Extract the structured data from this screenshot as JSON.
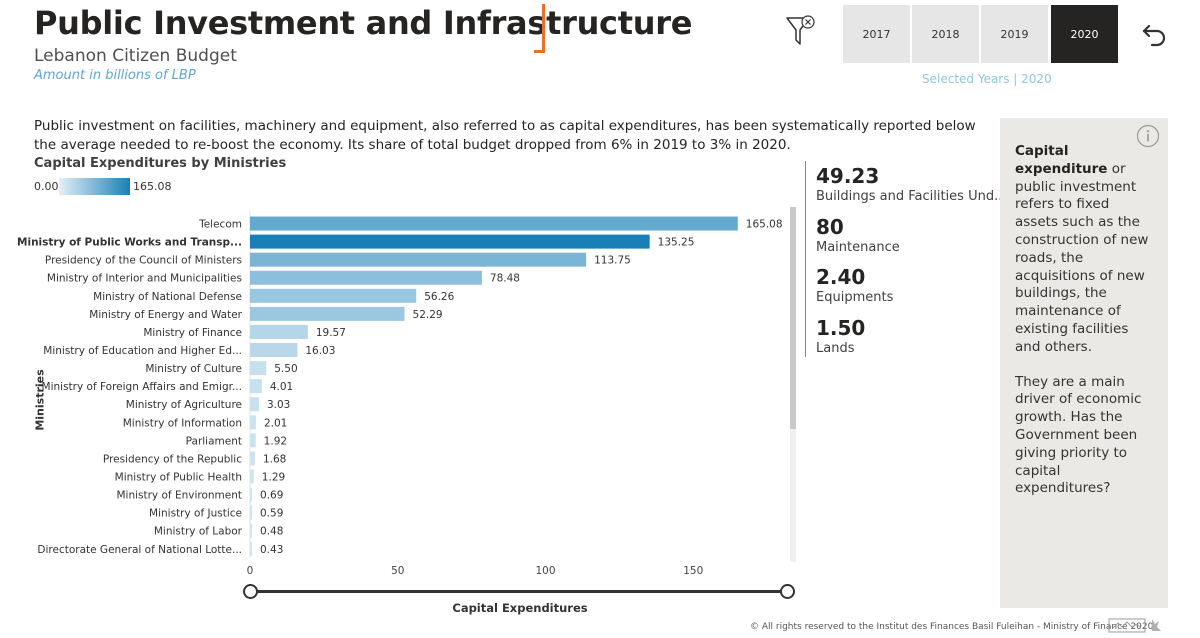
{
  "header": {
    "title": "Public Investment and Infrastructure",
    "subtitle": "Lebanon Citizen Budget",
    "unit_note": "Amount in billions of LBP"
  },
  "year_filter": {
    "years": [
      "2017",
      "2018",
      "2019",
      "2020"
    ],
    "selected": "2020",
    "selected_label": "Selected Years | 2020"
  },
  "intro_text": "Public investment on facilities, machinery and equipment, also referred to as capital expenditures, has been systematically reported below the average needed to re-boost the economy. Its share of total budget dropped from 6% in 2019 to 3% in 2020.",
  "legend": {
    "min": "0.00",
    "max": "165.08",
    "color_low": "#e3f0f8",
    "color_high": "#1a7fb6"
  },
  "chart_data": {
    "type": "bar",
    "orientation": "horizontal",
    "title": "Capital Expenditures by Ministries",
    "xlabel": "Capital Expenditures",
    "ylabel": "Ministries",
    "xlim": [
      0,
      165.08
    ],
    "xticks": [
      0,
      50,
      100,
      150
    ],
    "highlighted_category": "Ministry of Public Works and Transp...",
    "categories": [
      "Telecom",
      "Ministry of Public Works and Transp...",
      "Presidency of the Council of Ministers",
      "Ministry of Interior and Municipalities",
      "Ministry of National Defense",
      "Ministry of Energy and Water",
      "Ministry of Finance",
      "Ministry of Education and Higher Ed...",
      "Ministry of Culture",
      "Ministry of Foreign Affairs and Emigr...",
      "Ministry of Agriculture",
      "Ministry of Information",
      "Parliament",
      "Presidency of the Republic",
      "Ministry of Public Health",
      "Ministry of Environment",
      "Ministry of Justice",
      "Ministry of Labor",
      "Directorate General of National Lotte..."
    ],
    "values": [
      165.08,
      135.25,
      113.75,
      78.48,
      56.26,
      52.29,
      19.57,
      16.03,
      5.5,
      4.01,
      3.03,
      2.01,
      1.92,
      1.68,
      1.29,
      0.69,
      0.59,
      0.48,
      0.43
    ],
    "value_labels": [
      "165.08",
      "135.25",
      "113.75",
      "78.48",
      "56.26",
      "52.29",
      "19.57",
      "16.03",
      "5.50",
      "4.01",
      "3.03",
      "2.01",
      "1.92",
      "1.68",
      "1.29",
      "0.69",
      "0.59",
      "0.48",
      "0.43"
    ],
    "grid": false,
    "legend_position": "top-left"
  },
  "kpis": [
    {
      "value": "49.23",
      "label": "Buildings and Facilities Und..."
    },
    {
      "value": "80",
      "label": "Maintenance"
    },
    {
      "value": "2.40",
      "label": "Equipments"
    },
    {
      "value": "1.50",
      "label": "Lands"
    }
  ],
  "side_panel": {
    "heading": "Capital expenditure",
    "paragraph1": "or public investment refers to fixed assets such as the construction of new roads, the acquisitions of new buildings, the maintenance of existing facilities and others.",
    "paragraph2": "They are a main driver of economic growth. Has the Government been giving priority to capital expenditures?"
  },
  "footer": "© All rights reserved to the Institut des Finances Basil Fuleihan - Ministry of Finance 2020"
}
